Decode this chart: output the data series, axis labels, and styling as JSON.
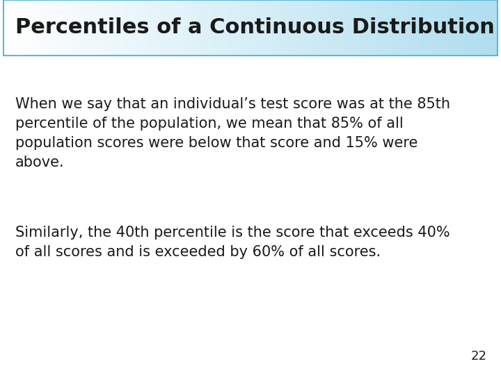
{
  "title": "Percentiles of a Continuous Distribution",
  "title_fontsize": 22,
  "title_color": "#1a1a1a",
  "title_bg_color_left": "#ffffff",
  "title_bg_color_right": "#b8dff0",
  "title_border_color": "#5ab8d8",
  "body_text_1": "When we say that an individual’s test score was at the 85th\npercentile of the population, we mean that 85% of all\npopulation scores were below that score and 15% were\nabove.",
  "body_text_2": "Similarly, the 40th percentile is the score that exceeds 40%\nof all scores and is exceeded by 60% of all scores.",
  "body_fontsize": 15,
  "body_color": "#1a1a1a",
  "page_number": "22",
  "background_color": "#ffffff",
  "font_family": "DejaVu Sans"
}
